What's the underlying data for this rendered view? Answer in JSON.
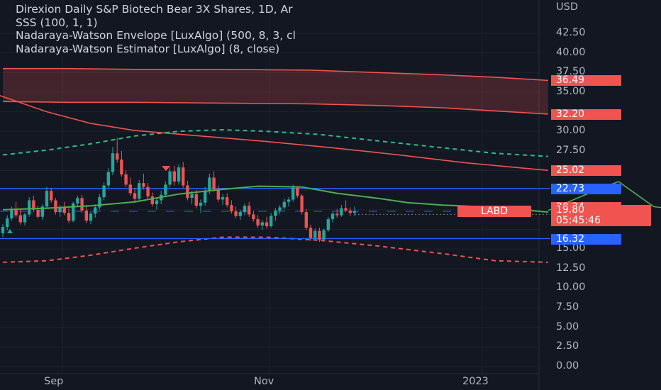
{
  "legend": {
    "title": "Direxion Daily S&P Biotech Bear 3X Shares, 1D, Ar",
    "indicator1": "SSS (100, 1, 1)",
    "indicator2": "Nadaraya-Watson Envelope [LuxAlgo] (500, 8, 3, cl",
    "indicator3": "Nadaraya-Watson Estimator [LuxAlgo] (8, close)"
  },
  "axis": {
    "currency": "USD",
    "y_ticks": [
      "42.50",
      "40.00",
      "37.50",
      "35.00",
      "30.00",
      "27.50",
      "15.00",
      "12.50",
      "10.00",
      "7.50",
      "5.00",
      "2.50",
      "0.00"
    ],
    "y_values": [
      42.5,
      40,
      37.5,
      35,
      30,
      27.5,
      15,
      12.5,
      10,
      7.5,
      5,
      2.5,
      0
    ],
    "x_ticks": [
      "Sep",
      "Nov",
      "2023"
    ]
  },
  "price_tags": [
    {
      "text": "36.49",
      "value": 36.49,
      "color": "#f05350"
    },
    {
      "text": "32.20",
      "value": 32.2,
      "color": "#f05350"
    },
    {
      "text": "25.02",
      "value": 25.02,
      "color": "#f05350"
    },
    {
      "text": "22.73",
      "value": 22.73,
      "color": "#2962ff"
    },
    {
      "text": "20.34",
      "value": 20.34,
      "color": "#f05350"
    },
    {
      "text": "19.60",
      "value": 19.6,
      "color": "#2962ff"
    },
    {
      "text": "16.32",
      "value": 16.32,
      "color": "#2962ff"
    }
  ],
  "last_price": {
    "symbol": "LABD",
    "price": "19.80",
    "countdown": "05:45:46",
    "value": 19.8
  },
  "chart_data": {
    "type": "candlestick",
    "title": "Direxion Daily S&P Biotech Bear 3X Shares, 1D",
    "ylabel": "USD",
    "ylim": [
      0,
      45
    ],
    "grid": true,
    "candles": [
      [
        17.0,
        18.2,
        16.5,
        17.8
      ],
      [
        17.8,
        19.3,
        17.4,
        18.9
      ],
      [
        18.9,
        20.4,
        18.6,
        20.0
      ],
      [
        20.0,
        21.0,
        19.0,
        19.3
      ],
      [
        19.3,
        20.1,
        18.1,
        18.4
      ],
      [
        18.4,
        19.6,
        18.0,
        19.4
      ],
      [
        19.4,
        21.6,
        19.1,
        21.2
      ],
      [
        21.2,
        21.8,
        19.7,
        20.0
      ],
      [
        20.0,
        20.5,
        18.9,
        19.1
      ],
      [
        19.1,
        20.7,
        18.7,
        20.4
      ],
      [
        20.4,
        22.9,
        20.1,
        22.4
      ],
      [
        22.4,
        22.8,
        20.9,
        21.2
      ],
      [
        21.2,
        21.5,
        19.4,
        19.7
      ],
      [
        19.7,
        20.6,
        19.1,
        20.3
      ],
      [
        20.3,
        21.0,
        19.3,
        19.6
      ],
      [
        19.6,
        20.2,
        18.3,
        18.6
      ],
      [
        18.6,
        21.0,
        18.4,
        20.8
      ],
      [
        20.8,
        21.8,
        20.4,
        21.5
      ],
      [
        21.5,
        21.9,
        19.6,
        19.9
      ],
      [
        19.9,
        20.6,
        18.3,
        18.6
      ],
      [
        18.6,
        19.8,
        18.2,
        19.5
      ],
      [
        19.5,
        20.7,
        19.0,
        20.3
      ],
      [
        20.3,
        22.0,
        20.0,
        21.6
      ],
      [
        21.6,
        23.5,
        21.2,
        23.1
      ],
      [
        23.1,
        25.3,
        22.8,
        24.8
      ],
      [
        24.8,
        28.0,
        24.4,
        27.2
      ],
      [
        27.2,
        29.2,
        26.0,
        26.4
      ],
      [
        26.4,
        27.5,
        24.2,
        24.5
      ],
      [
        24.5,
        25.0,
        22.9,
        23.2
      ],
      [
        23.2,
        24.1,
        21.8,
        22.1
      ],
      [
        22.1,
        22.8,
        20.9,
        21.4
      ],
      [
        21.4,
        23.8,
        21.1,
        23.4
      ],
      [
        23.4,
        24.6,
        22.6,
        22.9
      ],
      [
        22.9,
        23.4,
        21.4,
        21.7
      ],
      [
        21.7,
        22.2,
        20.4,
        20.7
      ],
      [
        20.7,
        21.6,
        20.0,
        21.2
      ],
      [
        21.2,
        22.4,
        20.7,
        21.9
      ],
      [
        21.9,
        23.6,
        21.6,
        23.2
      ],
      [
        23.2,
        25.4,
        22.9,
        24.9
      ],
      [
        24.9,
        25.6,
        23.1,
        23.6
      ],
      [
        23.6,
        25.8,
        23.2,
        25.4
      ],
      [
        25.4,
        26.1,
        22.8,
        23.1
      ],
      [
        23.1,
        23.7,
        21.2,
        21.5
      ],
      [
        21.5,
        22.4,
        20.7,
        22.0
      ],
      [
        22.0,
        22.5,
        20.2,
        20.5
      ],
      [
        20.5,
        21.3,
        19.6,
        20.9
      ],
      [
        20.9,
        22.9,
        20.5,
        22.4
      ],
      [
        22.4,
        24.6,
        22.0,
        24.1
      ],
      [
        24.1,
        24.9,
        22.3,
        22.6
      ],
      [
        22.6,
        23.1,
        21.0,
        21.3
      ],
      [
        21.3,
        22.0,
        20.6,
        21.6
      ],
      [
        21.6,
        22.1,
        20.3,
        20.6
      ],
      [
        20.6,
        21.2,
        19.5,
        19.8
      ],
      [
        19.8,
        20.4,
        18.9,
        19.2
      ],
      [
        19.2,
        20.0,
        18.7,
        19.7
      ],
      [
        19.7,
        20.8,
        19.3,
        20.5
      ],
      [
        20.5,
        21.0,
        19.1,
        19.4
      ],
      [
        19.4,
        19.9,
        18.5,
        18.8
      ],
      [
        18.8,
        19.3,
        17.7,
        18.0
      ],
      [
        18.0,
        18.7,
        17.4,
        18.4
      ],
      [
        18.4,
        19.1,
        17.6,
        17.9
      ],
      [
        17.9,
        19.6,
        17.7,
        19.2
      ],
      [
        19.2,
        20.2,
        18.6,
        19.9
      ],
      [
        19.9,
        20.6,
        19.4,
        20.3
      ],
      [
        20.3,
        21.4,
        20.0,
        21.0
      ],
      [
        21.0,
        21.6,
        20.4,
        21.3
      ],
      [
        21.3,
        23.2,
        21.0,
        22.8
      ],
      [
        22.8,
        23.0,
        21.5,
        21.8
      ],
      [
        21.8,
        22.0,
        19.4,
        19.7
      ],
      [
        19.7,
        20.1,
        17.4,
        17.7
      ],
      [
        17.7,
        18.1,
        16.0,
        16.4
      ],
      [
        16.4,
        17.6,
        16.1,
        17.3
      ],
      [
        17.3,
        17.7,
        15.9,
        16.2
      ],
      [
        16.2,
        17.6,
        16.0,
        17.4
      ],
      [
        17.4,
        19.1,
        17.2,
        18.8
      ],
      [
        18.8,
        19.7,
        18.4,
        19.5
      ],
      [
        19.5,
        20.1,
        19.0,
        19.3
      ],
      [
        19.3,
        20.6,
        19.1,
        20.2
      ],
      [
        20.2,
        21.2,
        19.7,
        19.9
      ],
      [
        19.9,
        20.3,
        19.2,
        19.6
      ],
      [
        19.6,
        20.4,
        19.2,
        19.8
      ]
    ],
    "estimator": [
      [
        0,
        20.0
      ],
      [
        10,
        20.2
      ],
      [
        20,
        20.5
      ],
      [
        30,
        21.0
      ],
      [
        40,
        22.0
      ],
      [
        50,
        22.6
      ],
      [
        58,
        23.0
      ],
      [
        68,
        22.9
      ],
      [
        76,
        22.1
      ],
      [
        86,
        21.4
      ],
      [
        92,
        20.9
      ],
      [
        100,
        20.6
      ],
      [
        112,
        20.3
      ],
      [
        120,
        19.9
      ],
      [
        124,
        19.7
      ]
    ],
    "projection": [
      [
        124,
        19.9
      ],
      [
        132,
        21.8
      ],
      [
        140,
        23.6
      ],
      [
        144,
        22.0
      ],
      [
        148,
        20.4
      ],
      [
        154,
        20.0
      ],
      [
        160,
        20.6
      ],
      [
        166,
        23.4
      ],
      [
        172,
        26.3
      ]
    ],
    "sss_band": [
      [
        0,
        38.0,
        33.8
      ],
      [
        15,
        38.0,
        33.7
      ],
      [
        30,
        37.9,
        33.7
      ],
      [
        50,
        37.9,
        33.6
      ],
      [
        70,
        37.8,
        33.5
      ],
      [
        85,
        37.5,
        33.3
      ],
      [
        100,
        37.2,
        33.0
      ],
      [
        112,
        36.9,
        32.6
      ],
      [
        124,
        36.49,
        32.2
      ]
    ],
    "envelope_upper": [
      [
        0,
        27.0
      ],
      [
        10,
        27.6
      ],
      [
        20,
        28.4
      ],
      [
        30,
        29.4
      ],
      [
        40,
        30.0
      ],
      [
        50,
        30.2
      ],
      [
        60,
        30.0
      ],
      [
        72,
        29.6
      ],
      [
        85,
        28.8
      ],
      [
        100,
        27.9
      ],
      [
        112,
        27.2
      ],
      [
        124,
        26.8
      ]
    ],
    "envelope_lower": [
      [
        0,
        13.3
      ],
      [
        10,
        13.5
      ],
      [
        20,
        14.2
      ],
      [
        30,
        15.1
      ],
      [
        40,
        15.9
      ],
      [
        50,
        16.5
      ],
      [
        60,
        16.5
      ],
      [
        72,
        16.1
      ],
      [
        85,
        15.4
      ],
      [
        100,
        14.4
      ],
      [
        112,
        13.5
      ],
      [
        124,
        13.3
      ]
    ],
    "trend_line": [
      [
        -5,
        35.4
      ],
      [
        10,
        32.5
      ],
      [
        20,
        31.0
      ],
      [
        30,
        30.1
      ],
      [
        45,
        29.4
      ],
      [
        60,
        28.7
      ],
      [
        75,
        27.9
      ],
      [
        90,
        27.0
      ],
      [
        105,
        26.0
      ],
      [
        124,
        25.02
      ]
    ],
    "support_lines": [
      22.73,
      16.32
    ],
    "x_labels": [
      {
        "label": "Sep",
        "i": 22
      },
      {
        "label": "Nov",
        "i": 95
      }
    ]
  }
}
